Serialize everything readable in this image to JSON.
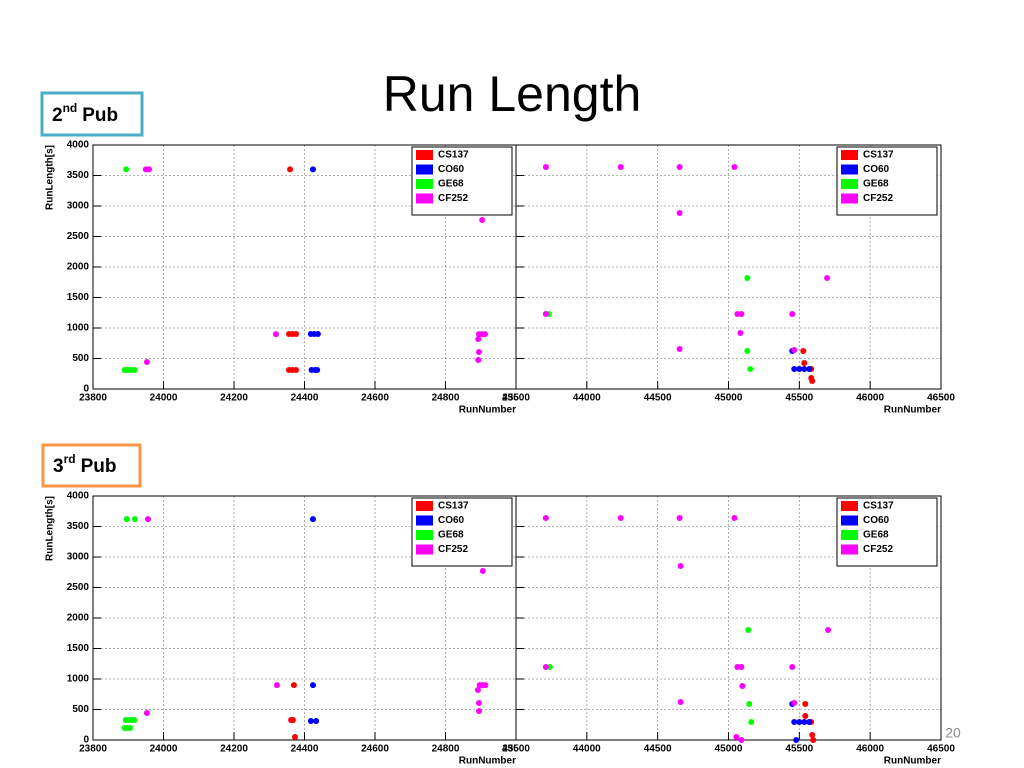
{
  "slide": {
    "title": "Run Length",
    "page_number": "20",
    "sections": [
      {
        "ordinal": "2",
        "suffix": "nd",
        "word": "Pub"
      },
      {
        "ordinal": "3",
        "suffix": "rd",
        "word": "Pub"
      }
    ]
  },
  "chart_data": [
    {
      "type": "scatter",
      "xlabel": "RunNumber",
      "ylabel": "RunLength[s]",
      "xlim": [
        23800,
        25000
      ],
      "xticks": [
        23800,
        24000,
        24200,
        24400,
        24600,
        24800,
        25000
      ],
      "ylim": [
        0,
        4000
      ],
      "yticks": [
        0,
        500,
        1000,
        1500,
        2000,
        2500,
        3000,
        3500,
        4000
      ],
      "grid": true,
      "legend": "top-right",
      "series": [
        {
          "name": "CS137",
          "color": "#ff0000",
          "x": [
            24359,
            24356,
            24366,
            24376,
            24356,
            24366,
            24376
          ],
          "values": [
            3600,
            901,
            901,
            901,
            311,
            311,
            311
          ]
        },
        {
          "name": "CO60",
          "color": "#0000ff",
          "x": [
            24424,
            24418,
            24428,
            24438,
            24420,
            24430,
            24436
          ],
          "values": [
            3600,
            901,
            901,
            901,
            311,
            311,
            311
          ]
        },
        {
          "name": "GE68",
          "color": "#00ff00",
          "x": [
            23894,
            23890,
            23897,
            23904,
            23911,
            23918
          ],
          "values": [
            3600,
            311,
            311,
            311,
            311,
            311
          ]
        },
        {
          "name": "CF252",
          "color": "#ff00ff",
          "x": [
            23950,
            23959,
            23953,
            24319,
            24904,
            24895,
            24904,
            24912,
            24893,
            24895,
            24893
          ],
          "values": [
            3600,
            3600,
            443,
            900,
            2770,
            900,
            900,
            900,
            820,
            606,
            475
          ]
        }
      ]
    },
    {
      "type": "scatter",
      "xlabel": "RunNumber",
      "xlim": [
        43500,
        46500
      ],
      "xticks": [
        43500,
        44000,
        44500,
        45000,
        45500,
        46000,
        46500
      ],
      "ylim": [
        0,
        4000
      ],
      "yticks": [
        0,
        500,
        1000,
        1500,
        2000,
        2500,
        3000,
        3500,
        4000
      ],
      "grid": true,
      "legend": "top-right",
      "series": [
        {
          "name": "CS137",
          "color": "#ff0000",
          "x": [
            45528,
            45535,
            45584,
            45584,
            45591
          ],
          "values": [
            623,
            426,
            328,
            180,
            131
          ]
        },
        {
          "name": "CO60",
          "color": "#0000ff",
          "x": [
            45464,
            45500,
            45535,
            45570,
            45450
          ],
          "values": [
            328,
            328,
            328,
            328,
            623
          ]
        },
        {
          "name": "GE68",
          "color": "#00ff00",
          "x": [
            43732,
            45133,
            45133,
            45154
          ],
          "values": [
            1230,
            1820,
            623,
            328
          ]
        },
        {
          "name": "CF252",
          "color": "#ff00ff",
          "x": [
            43711,
            44239,
            44655,
            45042,
            44655,
            43711,
            44655,
            45063,
            45091,
            45084,
            45450,
            45696,
            45464
          ],
          "values": [
            3640,
            3640,
            3640,
            3640,
            2885,
            1230,
            656,
            1230,
            1230,
            918,
            1230,
            1820,
            640
          ]
        }
      ]
    },
    {
      "type": "scatter",
      "xlabel": "RunNumber",
      "ylabel": "RunLength[s]",
      "xlim": [
        23800,
        25000
      ],
      "xticks": [
        23800,
        24000,
        24200,
        24400,
        24600,
        24800,
        25000
      ],
      "ylim": [
        0,
        4000
      ],
      "yticks": [
        0,
        500,
        1000,
        1500,
        2000,
        2500,
        3000,
        3500,
        4000
      ],
      "grid": true,
      "legend": "top-right",
      "series": [
        {
          "name": "CS137",
          "color": "#ff0000",
          "x": [
            24370,
            24362,
            24367,
            24373
          ],
          "values": [
            900,
            328,
            328,
            50
          ]
        },
        {
          "name": "CO60",
          "color": "#0000ff",
          "x": [
            24424,
            24424,
            24418,
            24433
          ],
          "values": [
            3620,
            900,
            311,
            311
          ]
        },
        {
          "name": "GE68",
          "color": "#00ff00",
          "x": [
            23896,
            23919,
            23893,
            23901,
            23909,
            23917,
            23890,
            23897,
            23905
          ],
          "values": [
            3620,
            3620,
            328,
            328,
            328,
            328,
            197,
            197,
            197
          ]
        },
        {
          "name": "CF252",
          "color": "#ff00ff",
          "x": [
            23956,
            23953,
            24322,
            24906,
            24897,
            24905,
            24913,
            24892,
            24895,
            24895
          ],
          "values": [
            3620,
            443,
            900,
            2770,
            900,
            900,
            900,
            820,
            606,
            475
          ]
        }
      ]
    },
    {
      "type": "scatter",
      "xlabel": "RunNumber",
      "xlim": [
        43500,
        46500
      ],
      "xticks": [
        43500,
        44000,
        44500,
        45000,
        45500,
        46000,
        46500
      ],
      "ylim": [
        0,
        4000
      ],
      "yticks": [
        0,
        500,
        1000,
        1500,
        2000,
        2500,
        3000,
        3500,
        4000
      ],
      "grid": true,
      "legend": "top-right",
      "series": [
        {
          "name": "CS137",
          "color": "#ff0000",
          "x": [
            45542,
            45542,
            45584,
            45591,
            45598
          ],
          "values": [
            590,
            393,
            295,
            82,
            0
          ]
        },
        {
          "name": "CO60",
          "color": "#0000ff",
          "x": [
            45464,
            45500,
            45535,
            45570,
            45478,
            45450
          ],
          "values": [
            295,
            295,
            295,
            295,
            0,
            590
          ]
        },
        {
          "name": "GE68",
          "color": "#00ff00",
          "x": [
            43739,
            45140,
            45147,
            45161
          ],
          "values": [
            1197,
            1803,
            590,
            295
          ]
        },
        {
          "name": "CF252",
          "color": "#ff00ff",
          "x": [
            43711,
            44239,
            44655,
            45042,
            44662,
            43711,
            44662,
            45063,
            45091,
            45098,
            45450,
            45703,
            45464,
            45056,
            45091
          ],
          "values": [
            3640,
            3640,
            3640,
            3640,
            2852,
            1197,
            623,
            1197,
            1197,
            885,
            1197,
            1803,
            607,
            49,
            0
          ]
        }
      ]
    }
  ]
}
